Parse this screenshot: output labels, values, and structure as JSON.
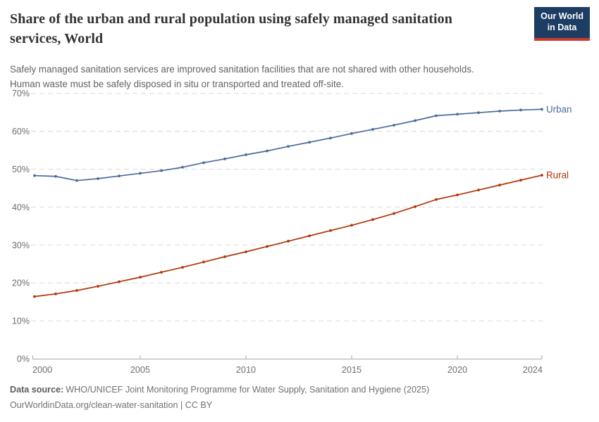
{
  "header": {
    "title_lines": [
      "Share of the urban and rural population using safely managed sanitation",
      "services, World"
    ],
    "subtitle_lines": [
      "Safely managed sanitation services are improved sanitation facilities that are not shared with other households.",
      "Human waste must be safely disposed in situ or transported and treated off-site."
    ],
    "logo_line1": "Our World",
    "logo_line2": "in Data",
    "logo_bg_color": "#1d3d63",
    "logo_stripe_color": "#d03a2b"
  },
  "chart_data": {
    "type": "line",
    "title": "Share of the urban and rural population using safely managed sanitation services, World",
    "x": [
      2000,
      2001,
      2002,
      2003,
      2004,
      2005,
      2006,
      2007,
      2008,
      2009,
      2010,
      2011,
      2012,
      2013,
      2014,
      2015,
      2016,
      2017,
      2018,
      2019,
      2020,
      2021,
      2022,
      2023,
      2024
    ],
    "series": [
      {
        "name": "Urban",
        "color": "#4c6a9c",
        "values": [
          48.3,
          48.1,
          47.0,
          47.5,
          48.2,
          48.9,
          49.6,
          50.5,
          51.7,
          52.7,
          53.8,
          54.8,
          56.0,
          57.1,
          58.2,
          59.4,
          60.5,
          61.6,
          62.8,
          64.1,
          64.5,
          64.9,
          65.3,
          65.6,
          65.8
        ]
      },
      {
        "name": "Rural",
        "color": "#b13507",
        "values": [
          16.4,
          17.1,
          18.0,
          19.1,
          20.3,
          21.5,
          22.8,
          24.1,
          25.5,
          26.9,
          28.2,
          29.6,
          31.0,
          32.4,
          33.8,
          35.2,
          36.7,
          38.3,
          40.1,
          42.0,
          43.2,
          44.5,
          45.8,
          47.1,
          48.4
        ]
      }
    ],
    "ylim": [
      0,
      70
    ],
    "y_ticks": [
      {
        "value": 0,
        "label": "0%"
      },
      {
        "value": 10,
        "label": "10%"
      },
      {
        "value": 20,
        "label": "20%"
      },
      {
        "value": 30,
        "label": "30%"
      },
      {
        "value": 40,
        "label": "40%"
      },
      {
        "value": 50,
        "label": "50%"
      },
      {
        "value": 60,
        "label": "60%"
      },
      {
        "value": 70,
        "label": "70%"
      }
    ],
    "x_ticks": [
      {
        "year": 2000,
        "label": "2000"
      },
      {
        "year": 2005,
        "label": "2005"
      },
      {
        "year": 2010,
        "label": "2010"
      },
      {
        "year": 2015,
        "label": "2015"
      },
      {
        "year": 2020,
        "label": "2020"
      },
      {
        "year": 2024,
        "label": "2024"
      }
    ],
    "grid": "dashed",
    "gridline_color": "#dadada",
    "axis_color": "#a8a8a8",
    "tick_label_color": "#6e6e6e",
    "legend_position": "end-of-line"
  },
  "footer": {
    "source_label": "Data source:",
    "source_text": "WHO/UNICEF Joint Monitoring Programme for Water Supply, Sanitation and Hygiene (2025)",
    "url_line": "OurWorldinData.org/clean-water-sanitation | CC BY"
  }
}
